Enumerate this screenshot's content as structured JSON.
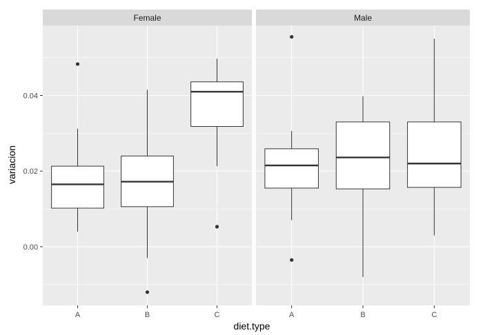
{
  "chart_data": {
    "type": "boxplot",
    "xlabel": "diet.type",
    "ylabel": "variacion",
    "ylim": [
      -0.0155,
      0.0585
    ],
    "y_ticks": [
      0.0,
      0.02,
      0.04
    ],
    "y_tick_labels": [
      "0.00",
      "0.02",
      "0.04"
    ],
    "categories": [
      "A",
      "B",
      "C"
    ],
    "grid": true,
    "panels": [
      {
        "name": "Female",
        "boxes": [
          {
            "category": "A",
            "whisker_low": 0.004,
            "q1": 0.0102,
            "median": 0.0165,
            "q3": 0.0213,
            "whisker_high": 0.0312,
            "outliers": [
              0.0483
            ]
          },
          {
            "category": "B",
            "whisker_low": -0.003,
            "q1": 0.0106,
            "median": 0.0172,
            "q3": 0.024,
            "whisker_high": 0.0415,
            "outliers": [
              -0.012
            ]
          },
          {
            "category": "C",
            "whisker_low": 0.0213,
            "q1": 0.0318,
            "median": 0.041,
            "q3": 0.0436,
            "whisker_high": 0.0497,
            "outliers": [
              0.0053
            ]
          }
        ]
      },
      {
        "name": "Male",
        "boxes": [
          {
            "category": "A",
            "whisker_low": 0.007,
            "q1": 0.0155,
            "median": 0.0215,
            "q3": 0.0259,
            "whisker_high": 0.0306,
            "outliers": [
              0.0555,
              -0.0035
            ]
          },
          {
            "category": "B",
            "whisker_low": -0.008,
            "q1": 0.0153,
            "median": 0.0236,
            "q3": 0.033,
            "whisker_high": 0.0398,
            "outliers": []
          },
          {
            "category": "C",
            "whisker_low": 0.003,
            "q1": 0.0157,
            "median": 0.022,
            "q3": 0.033,
            "whisker_high": 0.055,
            "outliers": []
          }
        ]
      }
    ]
  }
}
